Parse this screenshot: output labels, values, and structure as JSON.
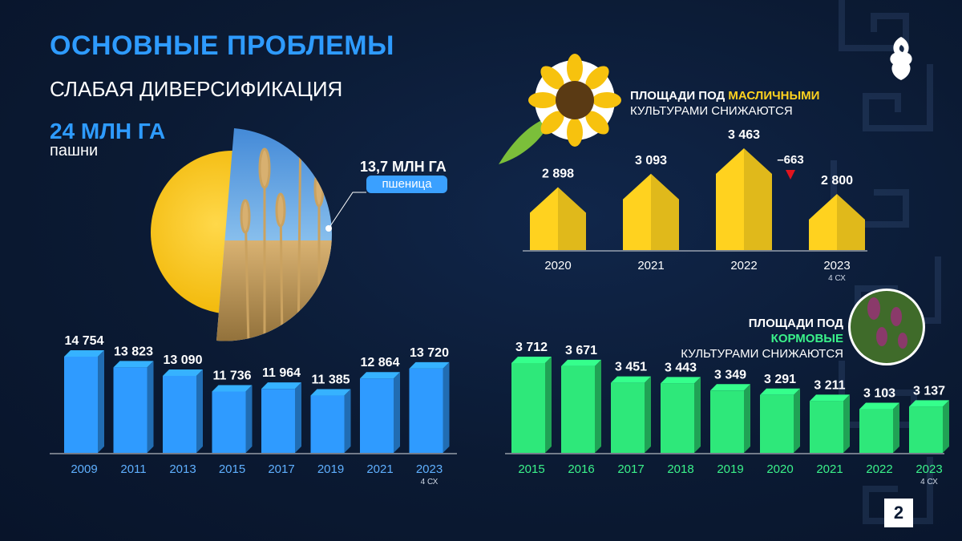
{
  "header": {
    "title": "ОСНОВНЫЕ ПРОБЛЕМЫ",
    "subtitle": "СЛАБАЯ ДИВЕРСИФИКАЦИЯ"
  },
  "arable": {
    "value": "24 МЛН ГА",
    "caption": "пашни",
    "wheat_value": "13,7 МЛН ГА",
    "wheat_label": "пшеница",
    "wheat_share": 0.571
  },
  "oilseed": {
    "heading_prefix": "ПЛОЩАДИ ПОД ",
    "heading_highlight": "МАСЛИЧНЫМИ",
    "heading_line2": "КУЛЬТУРАМИ СНИЖАЮТСЯ",
    "change_label": "–663",
    "highlight_color": "#ffd21f"
  },
  "fodder": {
    "heading_prefix": "ПЛОЩАДИ ПОД ",
    "heading_highlight": "КОРМОВЫЕ",
    "heading_line2": "КУЛЬТУРАМИ СНИЖАЮТСЯ",
    "highlight_color": "#3af28a"
  },
  "page_number": "2",
  "chart_data": [
    {
      "type": "bar",
      "name": "arable",
      "categories": [
        "2009",
        "2011",
        "2013",
        "2015",
        "2017",
        "2019",
        "2021",
        "2023"
      ],
      "values": [
        14754,
        13823,
        13090,
        11736,
        11964,
        11385,
        12864,
        13720
      ],
      "value_labels": [
        "14 754",
        "13 823",
        "13 090",
        "11 736",
        "11 964",
        "11 385",
        "12 864",
        "13 720"
      ],
      "notes": [
        "",
        "",
        "",
        "",
        "",
        "",
        "",
        "4 СХ"
      ],
      "color": "#2f9bff"
    },
    {
      "type": "bar",
      "name": "oilseed",
      "categories": [
        "2020",
        "2021",
        "2022",
        "2023"
      ],
      "values": [
        2898,
        3093,
        3463,
        2800
      ],
      "value_labels": [
        "2 898",
        "3 093",
        "3 463",
        "2 800"
      ],
      "notes": [
        "",
        "",
        "",
        "4 СХ"
      ],
      "color": "#ffd21f"
    },
    {
      "type": "bar",
      "name": "fodder",
      "categories": [
        "2015",
        "2016",
        "2017",
        "2018",
        "2019",
        "2020",
        "2021",
        "2022",
        "2023"
      ],
      "values": [
        3712,
        3671,
        3451,
        3443,
        3349,
        3291,
        3211,
        3103,
        3137
      ],
      "value_labels": [
        "3 712",
        "3 671",
        "3 451",
        "3 443",
        "3 349",
        "3 291",
        "3 211",
        "3 103",
        "3 137"
      ],
      "notes": [
        "",
        "",
        "",
        "",
        "",
        "",
        "",
        "",
        "4 СХ"
      ],
      "color": "#2ee87a"
    }
  ]
}
